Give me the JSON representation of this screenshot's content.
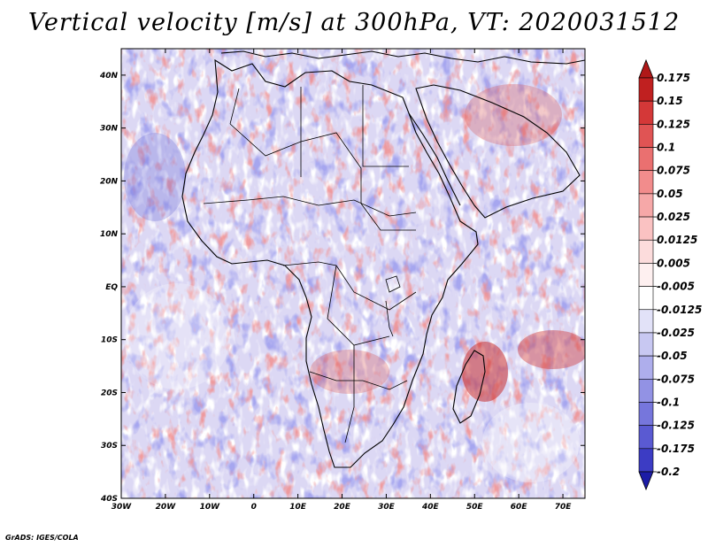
{
  "title": "Vertical velocity [m/s] at 300hPa, VT: 2020031512",
  "footer": "GrADS: IGES/COLA",
  "map": {
    "lon_range": [
      -30,
      75
    ],
    "lat_range": [
      -40,
      45
    ],
    "lon_ticks": [
      {
        "value": -30,
        "label": "30W"
      },
      {
        "value": -20,
        "label": "20W"
      },
      {
        "value": -10,
        "label": "10W"
      },
      {
        "value": 0,
        "label": "0"
      },
      {
        "value": 10,
        "label": "10E"
      },
      {
        "value": 20,
        "label": "20E"
      },
      {
        "value": 30,
        "label": "30E"
      },
      {
        "value": 40,
        "label": "40E"
      },
      {
        "value": 50,
        "label": "50E"
      },
      {
        "value": 60,
        "label": "60E"
      },
      {
        "value": 70,
        "label": "70E"
      }
    ],
    "lat_ticks": [
      {
        "value": 40,
        "label": "40N"
      },
      {
        "value": 30,
        "label": "30N"
      },
      {
        "value": 20,
        "label": "20N"
      },
      {
        "value": 10,
        "label": "10N"
      },
      {
        "value": 0,
        "label": "EQ"
      },
      {
        "value": -10,
        "label": "10S"
      },
      {
        "value": -20,
        "label": "20S"
      },
      {
        "value": -30,
        "label": "30S"
      },
      {
        "value": -40,
        "label": "40S"
      }
    ],
    "base_color": "#dcd8f4"
  },
  "colorbar": {
    "levels": [
      {
        "label": "0.175",
        "color": "#c02020"
      },
      {
        "label": "0.15",
        "color": "#d43838"
      },
      {
        "label": "0.125",
        "color": "#e05454"
      },
      {
        "label": "0.1",
        "color": "#ea7070"
      },
      {
        "label": "0.075",
        "color": "#f28c8c"
      },
      {
        "label": "0.05",
        "color": "#f6a8a8"
      },
      {
        "label": "0.025",
        "color": "#fac2c2"
      },
      {
        "label": "0.0125",
        "color": "#fcdcdc"
      },
      {
        "label": "0.005",
        "color": "#fef0f0"
      },
      {
        "label": "-0.005",
        "color": "#ffffff"
      },
      {
        "label": "-0.0125",
        "color": "#e2e2f8"
      },
      {
        "label": "-0.025",
        "color": "#c8c8f2"
      },
      {
        "label": "-0.05",
        "color": "#aeaeec"
      },
      {
        "label": "-0.075",
        "color": "#9292e4"
      },
      {
        "label": "-0.1",
        "color": "#7676dc"
      },
      {
        "label": "-0.125",
        "color": "#5a5ad2"
      },
      {
        "label": "-0.175",
        "color": "#3c3cc4"
      },
      {
        "label": "-0.2",
        "color": "#2626b4"
      }
    ],
    "top_color": "#b01818",
    "bottom_color": "#1c1ca6"
  }
}
